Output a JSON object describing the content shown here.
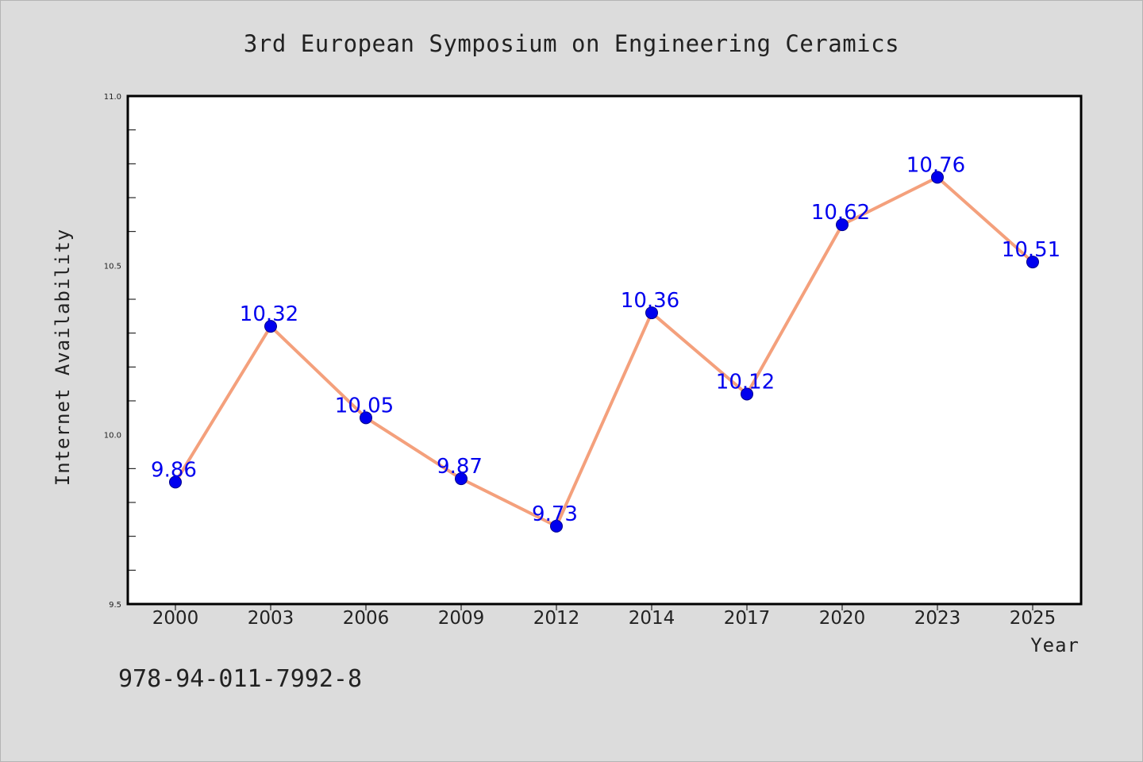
{
  "colors": {
    "background": "#dcdcdc",
    "plot_area": "#ffffff",
    "line": "#f4a07c",
    "marker": "#0000ee",
    "data_label": "#0000ee",
    "text": "#222222"
  },
  "footer": {
    "isbn": "978-94-011-7992-8"
  },
  "chart_data": {
    "type": "line",
    "title": "3rd European Symposium on Engineering Ceramics",
    "xlabel": "Year",
    "ylabel": "Internet Availability",
    "categories": [
      "2000",
      "2003",
      "2006",
      "2009",
      "2012",
      "2014",
      "2017",
      "2020",
      "2023",
      "2025"
    ],
    "series": [
      {
        "values": [
          9.86,
          10.32,
          10.05,
          9.87,
          9.73,
          10.36,
          10.12,
          10.62,
          10.76,
          10.51
        ]
      }
    ],
    "data_labels": [
      "9.86",
      "10.32",
      "10.05",
      "9.87",
      "9.73",
      "10.36",
      "10.12",
      "10.62",
      "10.76",
      "10.51"
    ],
    "ylim": [
      9.5,
      11.0
    ],
    "yticks": [
      9.5,
      10.0,
      10.5,
      11.0
    ],
    "ytick_labels": [
      "9.5",
      "10.0",
      "10.5",
      "11.0"
    ],
    "y_minor_step": 0.1,
    "grid": false,
    "legend": "none",
    "marker": "circle"
  }
}
